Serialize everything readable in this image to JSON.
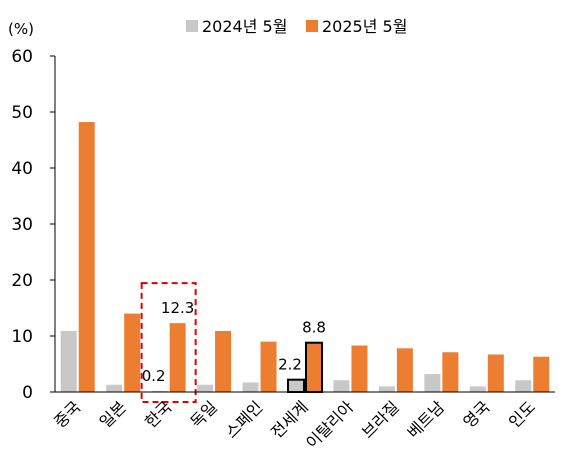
{
  "chart_data": {
    "type": "bar",
    "unit": "(%)",
    "ylim": [
      0,
      60
    ],
    "yticks": [
      0,
      10,
      20,
      30,
      40,
      50,
      60
    ],
    "categories": [
      "중국",
      "일본",
      "한국",
      "독일",
      "스페인",
      "전세계",
      "이탈리아",
      "브라질",
      "베트남",
      "영국",
      "인도"
    ],
    "series": [
      {
        "name": "2024년 5월",
        "color": "#c8c8c8",
        "values": [
          10.9,
          1.3,
          0.2,
          1.3,
          1.7,
          2.2,
          2.1,
          1.0,
          3.2,
          1.0,
          2.1
        ]
      },
      {
        "name": "2025년 5월",
        "color": "#ed7d31",
        "values": [
          48.2,
          14.0,
          12.3,
          10.9,
          9.0,
          8.8,
          8.3,
          7.8,
          7.1,
          6.7,
          6.3
        ]
      }
    ],
    "annotations": [
      {
        "category": "한국",
        "series": 0,
        "text": "0.2"
      },
      {
        "category": "한국",
        "series": 1,
        "text": "12.3"
      },
      {
        "category": "전세계",
        "series": 0,
        "text": "2.2"
      },
      {
        "category": "전세계",
        "series": 1,
        "text": "8.8"
      }
    ],
    "highlight": {
      "outline_category": "전세계",
      "dashed_box_category": "한국",
      "dashed_box_color": "#e00000"
    },
    "legend_position": "top",
    "grid": false
  }
}
